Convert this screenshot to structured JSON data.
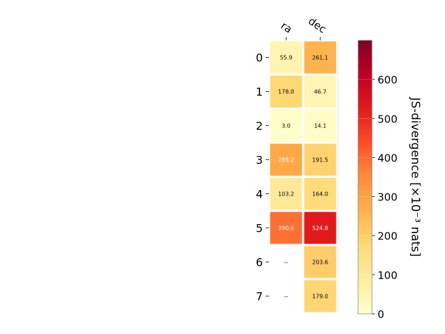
{
  "chart_data": {
    "type": "heatmap",
    "title": "",
    "columns": [
      "ra",
      "dec"
    ],
    "rows": [
      "0",
      "1",
      "2",
      "3",
      "4",
      "5",
      "6",
      "7"
    ],
    "values": [
      [
        55.9,
        261.1
      ],
      [
        178.0,
        46.7
      ],
      [
        3.0,
        14.1
      ],
      [
        285.2,
        191.5
      ],
      [
        103.2,
        164.0
      ],
      [
        390.6,
        524.8
      ],
      [
        null,
        203.6
      ],
      [
        null,
        179.0
      ]
    ],
    "cell_labels": [
      [
        "55.9",
        "261.1"
      ],
      [
        "178.0",
        "46.7"
      ],
      [
        "3.0",
        "14.1"
      ],
      [
        "285.2",
        "191.5"
      ],
      [
        "103.2",
        "164.0"
      ],
      [
        "390.6",
        "524.8"
      ],
      [
        "--",
        "203.6"
      ],
      [
        "--",
        "179.0"
      ]
    ],
    "colorbar": {
      "label": "JS-divergence [×10⁻³ nats]",
      "range": [
        0,
        700
      ],
      "ticks": [
        0,
        100,
        200,
        300,
        400,
        500,
        600
      ],
      "colormap": "YlOrRd",
      "colors": [
        "#ffffcc",
        "#ffeda0",
        "#fed976",
        "#feb24c",
        "#fd8d3c",
        "#fc4e2a",
        "#e31a1c",
        "#bd0026",
        "#800026"
      ]
    },
    "missing_color": "#ffffff",
    "grid": false
  }
}
